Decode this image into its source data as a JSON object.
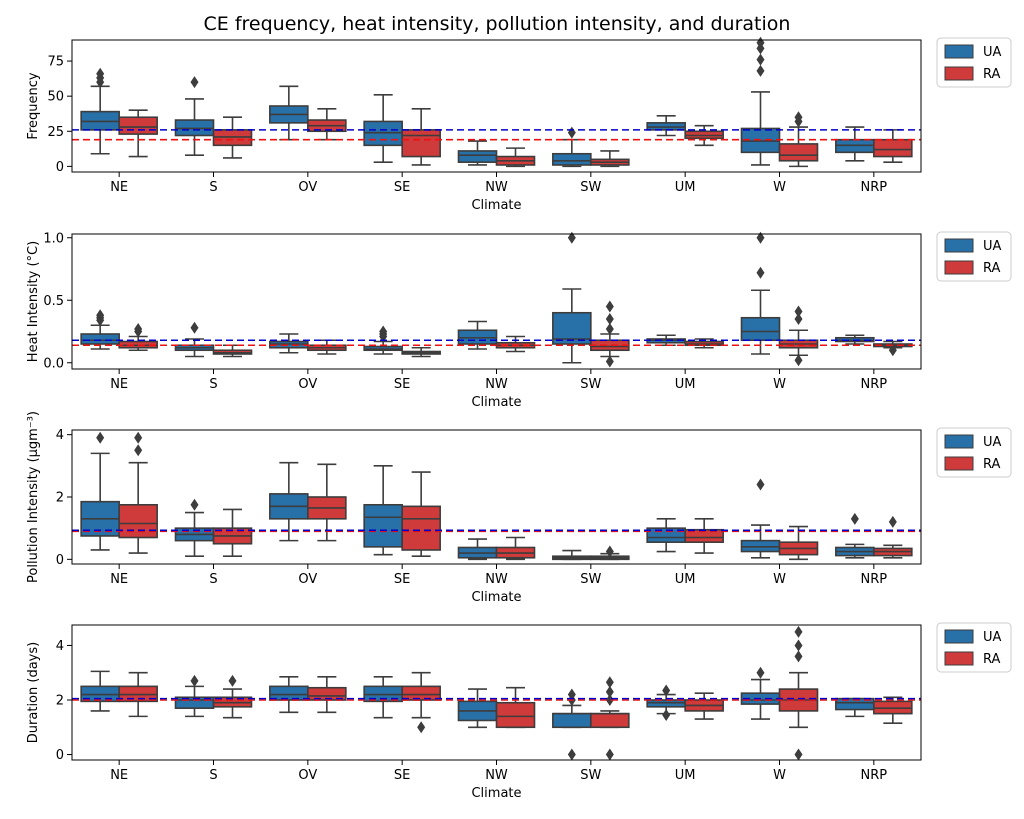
{
  "title": "CE frequency, heat intensity, pollution intensity, and duration",
  "colors": {
    "UA": "#2870a8",
    "RA": "#cf3a3a",
    "ua_ref": "#0000cc",
    "ra_ref": "#ee1111",
    "box_edge": "#3d3d3d"
  },
  "chart_data": [
    {
      "type": "box",
      "xlabel": "Climate",
      "ylabel": "Frequency",
      "ylim": [
        -4,
        90
      ],
      "yticks": [
        0,
        25,
        50,
        75
      ],
      "categories": [
        "NE",
        "S",
        "OV",
        "SE",
        "NW",
        "SW",
        "UM",
        "W",
        "NRP"
      ],
      "legend": {
        "placement": "outside-right",
        "entries": [
          "UA",
          "RA"
        ]
      },
      "reference_lines": {
        "UA": 26,
        "RA": 19
      },
      "series": [
        {
          "name": "UA",
          "boxes": [
            {
              "q1": 26,
              "median": 32,
              "q3": 39,
              "whislo": 9,
              "whishi": 57,
              "fliers": [
                60,
                63,
                66
              ]
            },
            {
              "q1": 22,
              "median": 27,
              "q3": 33,
              "whislo": 8,
              "whishi": 48,
              "fliers": [
                60
              ]
            },
            {
              "q1": 31,
              "median": 37,
              "q3": 43,
              "whislo": 19,
              "whishi": 57,
              "fliers": []
            },
            {
              "q1": 15,
              "median": 24,
              "q3": 32,
              "whislo": 3,
              "whishi": 51,
              "fliers": []
            },
            {
              "q1": 3,
              "median": 8,
              "q3": 11,
              "whislo": 1,
              "whishi": 18,
              "fliers": []
            },
            {
              "q1": 1,
              "median": 4,
              "q3": 9,
              "whislo": 0,
              "whishi": 19,
              "fliers": [
                24
              ]
            },
            {
              "q1": 26,
              "median": 28,
              "q3": 31,
              "whislo": 22,
              "whishi": 36,
              "fliers": []
            },
            {
              "q1": 10,
              "median": 18,
              "q3": 27,
              "whislo": 1,
              "whishi": 53,
              "fliers": [
                68,
                76,
                84,
                88
              ]
            },
            {
              "q1": 10,
              "median": 15,
              "q3": 19,
              "whislo": 4,
              "whishi": 28,
              "fliers": []
            }
          ]
        },
        {
          "name": "RA",
          "boxes": [
            {
              "q1": 23,
              "median": 28,
              "q3": 35,
              "whislo": 7,
              "whishi": 40,
              "fliers": []
            },
            {
              "q1": 15,
              "median": 21,
              "q3": 26,
              "whislo": 6,
              "whishi": 35,
              "fliers": []
            },
            {
              "q1": 25,
              "median": 29,
              "q3": 33,
              "whislo": 19,
              "whishi": 41,
              "fliers": []
            },
            {
              "q1": 7,
              "median": 22,
              "q3": 26,
              "whislo": 1,
              "whishi": 41,
              "fliers": []
            },
            {
              "q1": 1,
              "median": 4,
              "q3": 7,
              "whislo": 0,
              "whishi": 13,
              "fliers": []
            },
            {
              "q1": 1,
              "median": 3,
              "q3": 5,
              "whislo": 0,
              "whishi": 11,
              "fliers": []
            },
            {
              "q1": 20,
              "median": 22,
              "q3": 25,
              "whislo": 15,
              "whishi": 29,
              "fliers": []
            },
            {
              "q1": 4,
              "median": 8,
              "q3": 16,
              "whislo": 0,
              "whishi": 28,
              "fliers": [
                32,
                35
              ]
            },
            {
              "q1": 7,
              "median": 12,
              "q3": 19,
              "whislo": 3,
              "whishi": 26,
              "fliers": []
            }
          ]
        }
      ]
    },
    {
      "type": "box",
      "xlabel": "Climate",
      "ylabel": "Heat Intensity (°C)",
      "ylim": [
        -0.05,
        1.03
      ],
      "yticks": [
        0.0,
        0.5,
        1.0
      ],
      "ytick_labels": [
        "0.0",
        "0.5",
        "1.0"
      ],
      "categories": [
        "NE",
        "S",
        "OV",
        "SE",
        "NW",
        "SW",
        "UM",
        "W",
        "NRP"
      ],
      "legend": {
        "placement": "outside-right",
        "entries": [
          "UA",
          "RA"
        ]
      },
      "reference_lines": {
        "UA": 0.18,
        "RA": 0.14
      },
      "series": [
        {
          "name": "UA",
          "boxes": [
            {
              "q1": 0.15,
              "median": 0.18,
              "q3": 0.23,
              "whislo": 0.11,
              "whishi": 0.3,
              "fliers": [
                0.34,
                0.36,
                0.38
              ]
            },
            {
              "q1": 0.1,
              "median": 0.12,
              "q3": 0.14,
              "whislo": 0.05,
              "whishi": 0.19,
              "fliers": [
                0.28
              ]
            },
            {
              "q1": 0.12,
              "median": 0.15,
              "q3": 0.17,
              "whislo": 0.08,
              "whishi": 0.23,
              "fliers": []
            },
            {
              "q1": 0.1,
              "median": 0.11,
              "q3": 0.13,
              "whislo": 0.07,
              "whishi": 0.17,
              "fliers": [
                0.21,
                0.23,
                0.25
              ]
            },
            {
              "q1": 0.15,
              "median": 0.2,
              "q3": 0.26,
              "whislo": 0.11,
              "whishi": 0.33,
              "fliers": []
            },
            {
              "q1": 0.15,
              "median": 0.19,
              "q3": 0.4,
              "whislo": 0.0,
              "whishi": 0.59,
              "fliers": [
                1.0
              ]
            },
            {
              "q1": 0.16,
              "median": 0.18,
              "q3": 0.19,
              "whislo": 0.14,
              "whishi": 0.22,
              "fliers": []
            },
            {
              "q1": 0.18,
              "median": 0.25,
              "q3": 0.36,
              "whislo": 0.07,
              "whishi": 0.58,
              "fliers": [
                0.72,
                1.0
              ]
            },
            {
              "q1": 0.17,
              "median": 0.18,
              "q3": 0.2,
              "whislo": 0.15,
              "whishi": 0.22,
              "fliers": []
            }
          ]
        },
        {
          "name": "RA",
          "boxes": [
            {
              "q1": 0.12,
              "median": 0.14,
              "q3": 0.17,
              "whislo": 0.1,
              "whishi": 0.21,
              "fliers": [
                0.25,
                0.27
              ]
            },
            {
              "q1": 0.07,
              "median": 0.08,
              "q3": 0.1,
              "whislo": 0.05,
              "whishi": 0.14,
              "fliers": []
            },
            {
              "q1": 0.1,
              "median": 0.12,
              "q3": 0.14,
              "whislo": 0.07,
              "whishi": 0.18,
              "fliers": []
            },
            {
              "q1": 0.07,
              "median": 0.08,
              "q3": 0.09,
              "whislo": 0.05,
              "whishi": 0.12,
              "fliers": []
            },
            {
              "q1": 0.12,
              "median": 0.14,
              "q3": 0.16,
              "whislo": 0.09,
              "whishi": 0.21,
              "fliers": []
            },
            {
              "q1": 0.1,
              "median": 0.13,
              "q3": 0.18,
              "whislo": 0.05,
              "whishi": 0.23,
              "fliers": [
                0.01,
                0.27,
                0.35,
                0.45
              ]
            },
            {
              "q1": 0.14,
              "median": 0.15,
              "q3": 0.17,
              "whislo": 0.12,
              "whishi": 0.19,
              "fliers": []
            },
            {
              "q1": 0.12,
              "median": 0.15,
              "q3": 0.18,
              "whislo": 0.06,
              "whishi": 0.26,
              "fliers": [
                0.02,
                0.35,
                0.41
              ]
            },
            {
              "q1": 0.13,
              "median": 0.14,
              "q3": 0.15,
              "whislo": 0.12,
              "whishi": 0.17,
              "fliers": [
                0.1
              ]
            }
          ]
        }
      ]
    },
    {
      "type": "box",
      "xlabel": "Climate",
      "ylabel": "Pollution Intensity (µgm⁻³)",
      "ylim": [
        -0.15,
        4.15
      ],
      "yticks": [
        0,
        2,
        4
      ],
      "categories": [
        "NE",
        "S",
        "OV",
        "SE",
        "NW",
        "SW",
        "UM",
        "W",
        "NRP"
      ],
      "legend": {
        "placement": "outside-right",
        "entries": [
          "UA",
          "RA"
        ]
      },
      "reference_lines": {
        "UA": 0.93,
        "RA": 0.9
      },
      "series": [
        {
          "name": "UA",
          "boxes": [
            {
              "q1": 0.75,
              "median": 1.3,
              "q3": 1.85,
              "whislo": 0.3,
              "whishi": 3.4,
              "fliers": [
                3.9
              ]
            },
            {
              "q1": 0.6,
              "median": 0.8,
              "q3": 1.0,
              "whislo": 0.1,
              "whishi": 1.5,
              "fliers": [
                1.75
              ]
            },
            {
              "q1": 1.3,
              "median": 1.7,
              "q3": 2.1,
              "whislo": 0.6,
              "whishi": 3.1,
              "fliers": []
            },
            {
              "q1": 0.4,
              "median": 1.35,
              "q3": 1.75,
              "whislo": 0.15,
              "whishi": 3.0,
              "fliers": []
            },
            {
              "q1": 0.05,
              "median": 0.2,
              "q3": 0.38,
              "whislo": 0.0,
              "whishi": 0.65,
              "fliers": []
            },
            {
              "q1": 0.0,
              "median": 0.05,
              "q3": 0.1,
              "whislo": 0.0,
              "whishi": 0.28,
              "fliers": []
            },
            {
              "q1": 0.55,
              "median": 0.7,
              "q3": 1.0,
              "whislo": 0.25,
              "whishi": 1.3,
              "fliers": []
            },
            {
              "q1": 0.25,
              "median": 0.4,
              "q3": 0.6,
              "whislo": 0.05,
              "whishi": 1.1,
              "fliers": [
                2.4
              ]
            },
            {
              "q1": 0.12,
              "median": 0.25,
              "q3": 0.38,
              "whislo": 0.05,
              "whishi": 0.48,
              "fliers": [
                1.3
              ]
            }
          ]
        },
        {
          "name": "RA",
          "boxes": [
            {
              "q1": 0.7,
              "median": 1.15,
              "q3": 1.75,
              "whislo": 0.2,
              "whishi": 3.1,
              "fliers": [
                3.5,
                3.9
              ]
            },
            {
              "q1": 0.5,
              "median": 0.75,
              "q3": 1.0,
              "whislo": 0.1,
              "whishi": 1.6,
              "fliers": []
            },
            {
              "q1": 1.3,
              "median": 1.65,
              "q3": 2.0,
              "whislo": 0.6,
              "whishi": 3.05,
              "fliers": []
            },
            {
              "q1": 0.3,
              "median": 1.3,
              "q3": 1.7,
              "whislo": 0.1,
              "whishi": 2.8,
              "fliers": []
            },
            {
              "q1": 0.05,
              "median": 0.2,
              "q3": 0.38,
              "whislo": 0.0,
              "whishi": 0.7,
              "fliers": []
            },
            {
              "q1": 0.0,
              "median": 0.05,
              "q3": 0.1,
              "whislo": 0.0,
              "whishi": 0.18,
              "fliers": [
                0.25
              ]
            },
            {
              "q1": 0.55,
              "median": 0.7,
              "q3": 0.95,
              "whislo": 0.2,
              "whishi": 1.3,
              "fliers": []
            },
            {
              "q1": 0.15,
              "median": 0.35,
              "q3": 0.55,
              "whislo": 0.0,
              "whishi": 1.05,
              "fliers": []
            },
            {
              "q1": 0.12,
              "median": 0.25,
              "q3": 0.35,
              "whislo": 0.05,
              "whishi": 0.45,
              "fliers": [
                1.2
              ]
            }
          ]
        }
      ]
    },
    {
      "type": "box",
      "xlabel": "Climate",
      "ylabel": "Duration (days)",
      "ylim": [
        -0.2,
        4.75
      ],
      "yticks": [
        0,
        2,
        4
      ],
      "categories": [
        "NE",
        "S",
        "OV",
        "SE",
        "NW",
        "SW",
        "UM",
        "W",
        "NRP"
      ],
      "legend": {
        "placement": "outside-right",
        "entries": [
          "UA",
          "RA"
        ]
      },
      "reference_lines": {
        "UA": 2.05,
        "RA": 2.0
      },
      "series": [
        {
          "name": "UA",
          "boxes": [
            {
              "q1": 1.95,
              "median": 2.2,
              "q3": 2.5,
              "whislo": 1.6,
              "whishi": 3.05,
              "fliers": []
            },
            {
              "q1": 1.7,
              "median": 2.0,
              "q3": 2.1,
              "whislo": 1.4,
              "whishi": 2.5,
              "fliers": [
                2.7
              ]
            },
            {
              "q1": 2.0,
              "median": 2.2,
              "q3": 2.5,
              "whislo": 1.55,
              "whishi": 2.85,
              "fliers": []
            },
            {
              "q1": 1.95,
              "median": 2.2,
              "q3": 2.5,
              "whislo": 1.35,
              "whishi": 2.85,
              "fliers": []
            },
            {
              "q1": 1.25,
              "median": 1.6,
              "q3": 1.95,
              "whislo": 1.0,
              "whishi": 2.4,
              "fliers": []
            },
            {
              "q1": 1.0,
              "median": 1.5,
              "q3": 1.5,
              "whislo": 1.0,
              "whishi": 1.8,
              "fliers": [
                0.0,
                2.0,
                2.2
              ]
            },
            {
              "q1": 1.75,
              "median": 1.9,
              "q3": 2.0,
              "whislo": 1.5,
              "whishi": 2.2,
              "fliers": [
                1.45,
                2.35
              ]
            },
            {
              "q1": 1.85,
              "median": 2.0,
              "q3": 2.25,
              "whislo": 1.3,
              "whishi": 2.75,
              "fliers": [
                3.0
              ]
            },
            {
              "q1": 1.65,
              "median": 1.9,
              "q3": 2.05,
              "whislo": 1.4,
              "whishi": 2.05,
              "fliers": []
            }
          ]
        },
        {
          "name": "RA",
          "boxes": [
            {
              "q1": 1.95,
              "median": 2.2,
              "q3": 2.5,
              "whislo": 1.4,
              "whishi": 3.0,
              "fliers": []
            },
            {
              "q1": 1.75,
              "median": 1.9,
              "q3": 2.1,
              "whislo": 1.35,
              "whishi": 2.4,
              "fliers": [
                2.7
              ]
            },
            {
              "q1": 2.0,
              "median": 2.15,
              "q3": 2.45,
              "whislo": 1.55,
              "whishi": 2.85,
              "fliers": []
            },
            {
              "q1": 2.0,
              "median": 2.2,
              "q3": 2.5,
              "whislo": 1.35,
              "whishi": 3.0,
              "fliers": [
                1.0
              ]
            },
            {
              "q1": 1.0,
              "median": 1.4,
              "q3": 1.9,
              "whislo": 1.0,
              "whishi": 2.45,
              "fliers": []
            },
            {
              "q1": 1.0,
              "median": 1.5,
              "q3": 1.5,
              "whislo": 1.0,
              "whishi": 1.6,
              "fliers": [
                0.0,
                2.0,
                2.3,
                2.65
              ]
            },
            {
              "q1": 1.6,
              "median": 1.8,
              "q3": 2.0,
              "whislo": 1.3,
              "whishi": 2.25,
              "fliers": []
            },
            {
              "q1": 1.6,
              "median": 2.0,
              "q3": 2.4,
              "whislo": 1.0,
              "whishi": 3.0,
              "fliers": [
                0.0,
                3.6,
                4.0,
                4.5
              ]
            },
            {
              "q1": 1.5,
              "median": 1.7,
              "q3": 1.95,
              "whislo": 1.15,
              "whishi": 2.1,
              "fliers": []
            }
          ]
        }
      ]
    }
  ]
}
